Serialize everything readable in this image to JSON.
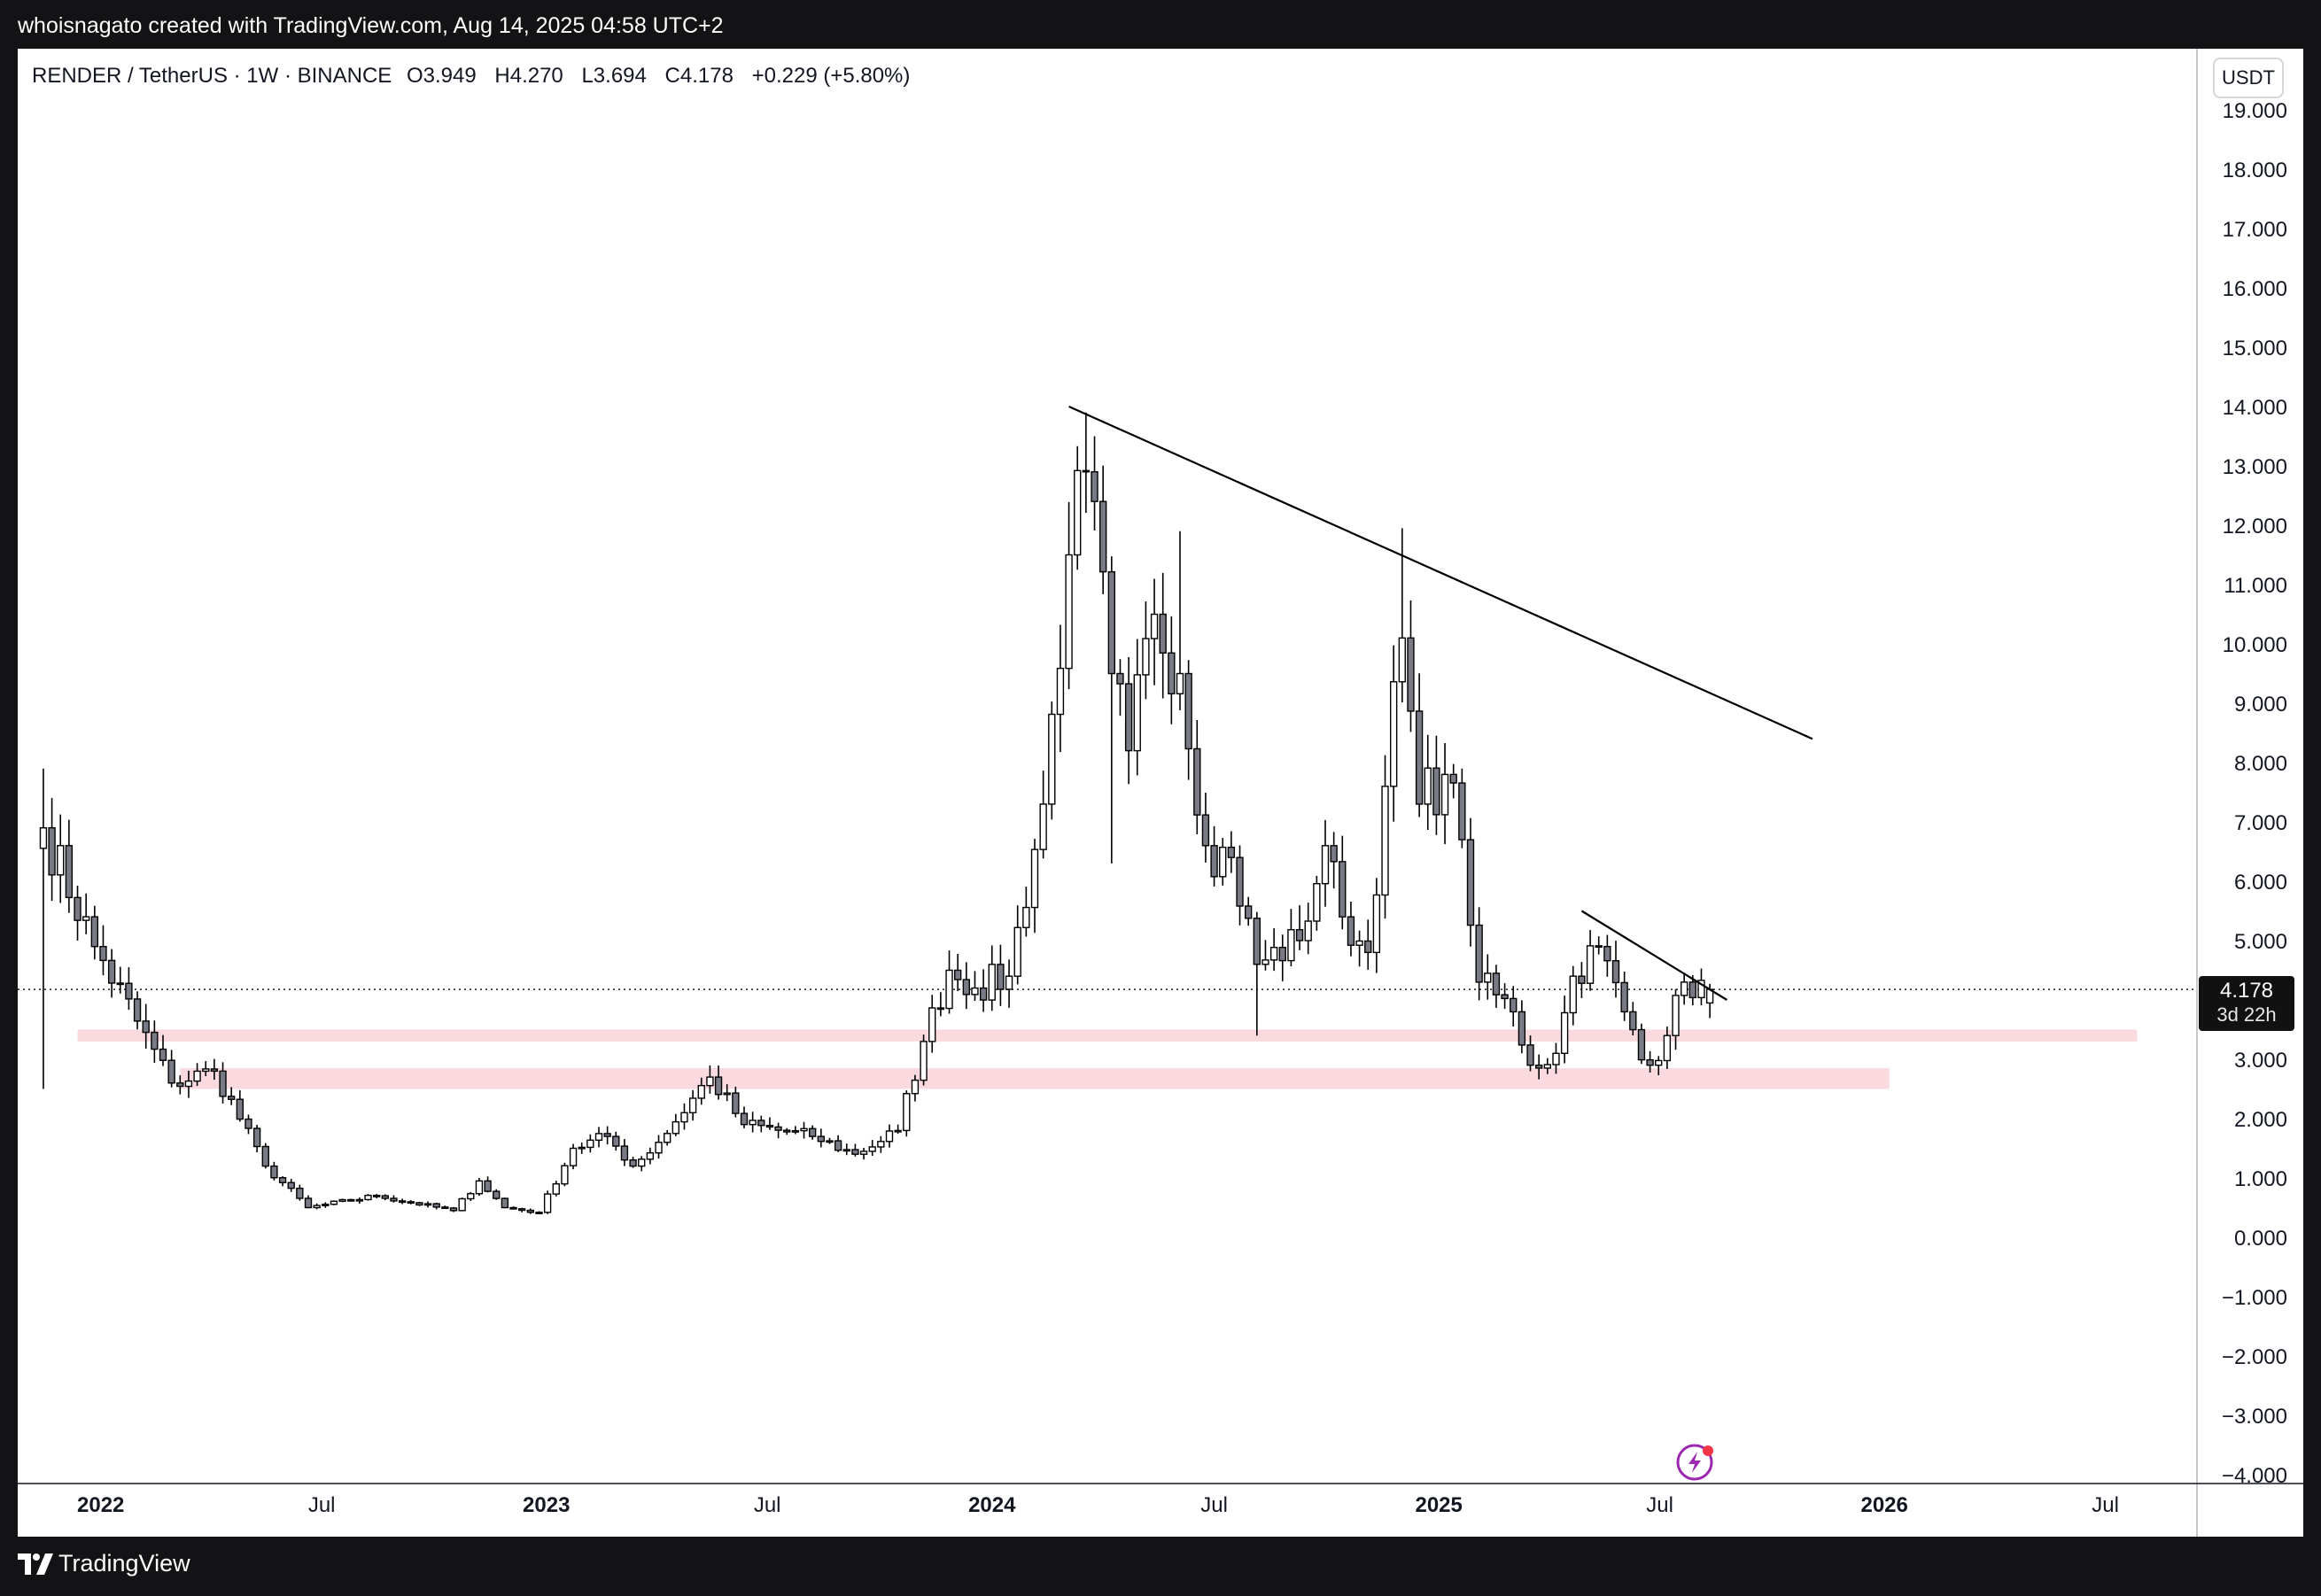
{
  "header": {
    "attribution": "whoisnagato created with TradingView.com, Aug 14, 2025 04:58 UTC+2"
  },
  "legend": {
    "symbol": "RENDER / TetherUS · 1W · BINANCE",
    "open": "O3.949",
    "high": "H4.270",
    "low": "L3.694",
    "close": "C4.178",
    "change": "+0.229 (+5.80%)"
  },
  "axis": {
    "currency": "USDT"
  },
  "last_price": {
    "value": "4.178",
    "countdown": "3d 22h"
  },
  "footer": {
    "brand": "TradingView"
  },
  "colors": {
    "background_outer": "#131315",
    "chart_background": "#ffffff",
    "candle_up_body": "#ffffff",
    "candle_down_body": "#787b86",
    "candle_outline": "#000000",
    "support_zone": "#fadadf",
    "trendline": "#000000",
    "flash_icon": "#9c27b0",
    "flash_dot": "#f23645"
  },
  "icons": {
    "flash": "lightning-bolt-icon",
    "logo": "tradingview-logo-icon"
  },
  "chart_data": {
    "type": "candlestick",
    "interval": "1W",
    "y_range": [
      -4,
      19
    ],
    "y_ticks": [
      "19.000",
      "18.000",
      "17.000",
      "16.000",
      "15.000",
      "14.000",
      "13.000",
      "12.000",
      "11.000",
      "10.000",
      "9.000",
      "8.000",
      "7.000",
      "6.000",
      "5.000",
      "4.000",
      "3.000",
      "2.000",
      "1.000",
      "0.000",
      "−1.000",
      "−2.000",
      "−3.000",
      "−4.000"
    ],
    "x_range": [
      "2021-10-25",
      "2026-09-14"
    ],
    "x_ticks": [
      {
        "label": "2022",
        "date": "2022-01-01",
        "major": true
      },
      {
        "label": "Jul",
        "date": "2022-07-01",
        "major": false
      },
      {
        "label": "2023",
        "date": "2023-01-01",
        "major": true
      },
      {
        "label": "Jul",
        "date": "2023-07-01",
        "major": false
      },
      {
        "label": "2024",
        "date": "2024-01-01",
        "major": true
      },
      {
        "label": "Jul",
        "date": "2024-07-01",
        "major": false
      },
      {
        "label": "2025",
        "date": "2025-01-01",
        "major": true
      },
      {
        "label": "Jul",
        "date": "2025-07-01",
        "major": false
      },
      {
        "label": "2026",
        "date": "2026-01-01",
        "major": true
      },
      {
        "label": "Jul",
        "date": "2026-07-01",
        "major": false
      }
    ],
    "first_candle": "2021-11-15",
    "anchors": [
      {
        "date": "2021-11-15",
        "price": 6.9
      },
      {
        "date": "2021-12-27",
        "price": 4.9
      },
      {
        "date": "2022-02-28",
        "price": 2.6
      },
      {
        "date": "2022-04-04",
        "price": 2.8
      },
      {
        "date": "2022-05-16",
        "price": 1.2
      },
      {
        "date": "2022-06-20",
        "price": 0.5
      },
      {
        "date": "2022-08-15",
        "price": 0.7
      },
      {
        "date": "2022-10-17",
        "price": 0.45
      },
      {
        "date": "2022-11-07",
        "price": 0.95
      },
      {
        "date": "2022-11-28",
        "price": 0.5
      },
      {
        "date": "2022-12-26",
        "price": 0.42
      },
      {
        "date": "2023-01-23",
        "price": 1.5
      },
      {
        "date": "2023-02-20",
        "price": 1.7
      },
      {
        "date": "2023-03-13",
        "price": 1.2
      },
      {
        "date": "2023-04-03",
        "price": 1.6
      },
      {
        "date": "2023-05-15",
        "price": 2.7
      },
      {
        "date": "2023-06-12",
        "price": 1.9
      },
      {
        "date": "2023-08-07",
        "price": 1.7
      },
      {
        "date": "2023-09-11",
        "price": 1.4
      },
      {
        "date": "2023-10-16",
        "price": 1.8
      },
      {
        "date": "2023-11-06",
        "price": 3.3
      },
      {
        "date": "2023-11-27",
        "price": 4.5
      },
      {
        "date": "2023-12-18",
        "price": 4.2
      },
      {
        "date": "2024-01-15",
        "price": 4.4
      },
      {
        "date": "2024-02-12",
        "price": 7.3
      },
      {
        "date": "2024-03-04",
        "price": 11.5
      },
      {
        "date": "2024-03-18",
        "price": 12.9
      },
      {
        "date": "2024-04-08",
        "price": 9.5
      },
      {
        "date": "2024-04-22",
        "price": 8.2
      },
      {
        "date": "2024-05-13",
        "price": 10.5
      },
      {
        "date": "2024-06-03",
        "price": 9.5
      },
      {
        "date": "2024-06-24",
        "price": 6.6
      },
      {
        "date": "2024-07-15",
        "price": 6.4
      },
      {
        "date": "2024-08-05",
        "price": 4.6
      },
      {
        "date": "2024-09-09",
        "price": 5.0
      },
      {
        "date": "2024-09-30",
        "price": 6.6
      },
      {
        "date": "2024-10-14",
        "price": 5.4
      },
      {
        "date": "2024-11-04",
        "price": 4.8
      },
      {
        "date": "2024-11-18",
        "price": 7.6
      },
      {
        "date": "2024-12-02",
        "price": 10.1
      },
      {
        "date": "2024-12-16",
        "price": 7.3
      },
      {
        "date": "2025-01-06",
        "price": 7.8
      },
      {
        "date": "2025-01-20",
        "price": 6.7
      },
      {
        "date": "2025-02-03",
        "price": 4.3
      },
      {
        "date": "2025-03-03",
        "price": 3.8
      },
      {
        "date": "2025-03-17",
        "price": 2.9
      },
      {
        "date": "2025-04-07",
        "price": 3.1
      },
      {
        "date": "2025-04-21",
        "price": 4.4
      },
      {
        "date": "2025-05-12",
        "price": 4.9
      },
      {
        "date": "2025-06-02",
        "price": 3.8
      },
      {
        "date": "2025-06-23",
        "price": 2.9
      },
      {
        "date": "2025-07-07",
        "price": 3.4
      },
      {
        "date": "2025-07-21",
        "price": 4.3
      },
      {
        "date": "2025-08-11",
        "price": 4.178
      }
    ],
    "last_candle": {
      "open": 3.949,
      "high": 4.27,
      "low": 3.694,
      "close": 4.178
    },
    "spikes": [
      {
        "date": "2021-11-15",
        "high": 7.9,
        "low": 2.5
      },
      {
        "date": "2024-03-18",
        "high": 13.9
      },
      {
        "date": "2024-03-25",
        "high": 13.5
      },
      {
        "date": "2024-04-08",
        "low": 6.3
      },
      {
        "date": "2024-06-03",
        "high": 11.9
      },
      {
        "date": "2024-08-05",
        "low": 3.4
      },
      {
        "date": "2024-12-02",
        "high": 11.95
      }
    ],
    "trendlines": [
      {
        "from": {
          "date": "2024-03-04",
          "price": 14.0
        },
        "to": {
          "date": "2025-11-03",
          "price": 8.4
        }
      },
      {
        "from": {
          "date": "2025-04-28",
          "price": 5.5
        },
        "to": {
          "date": "2025-08-25",
          "price": 4.0
        }
      }
    ],
    "zones": [
      {
        "from": "2021-12-13",
        "to": "2026-07-27",
        "low": 3.3,
        "high": 3.5
      },
      {
        "from": "2022-03-07",
        "to": "2026-01-05",
        "low": 2.5,
        "high": 2.85
      }
    ],
    "current_price": 4.178
  }
}
